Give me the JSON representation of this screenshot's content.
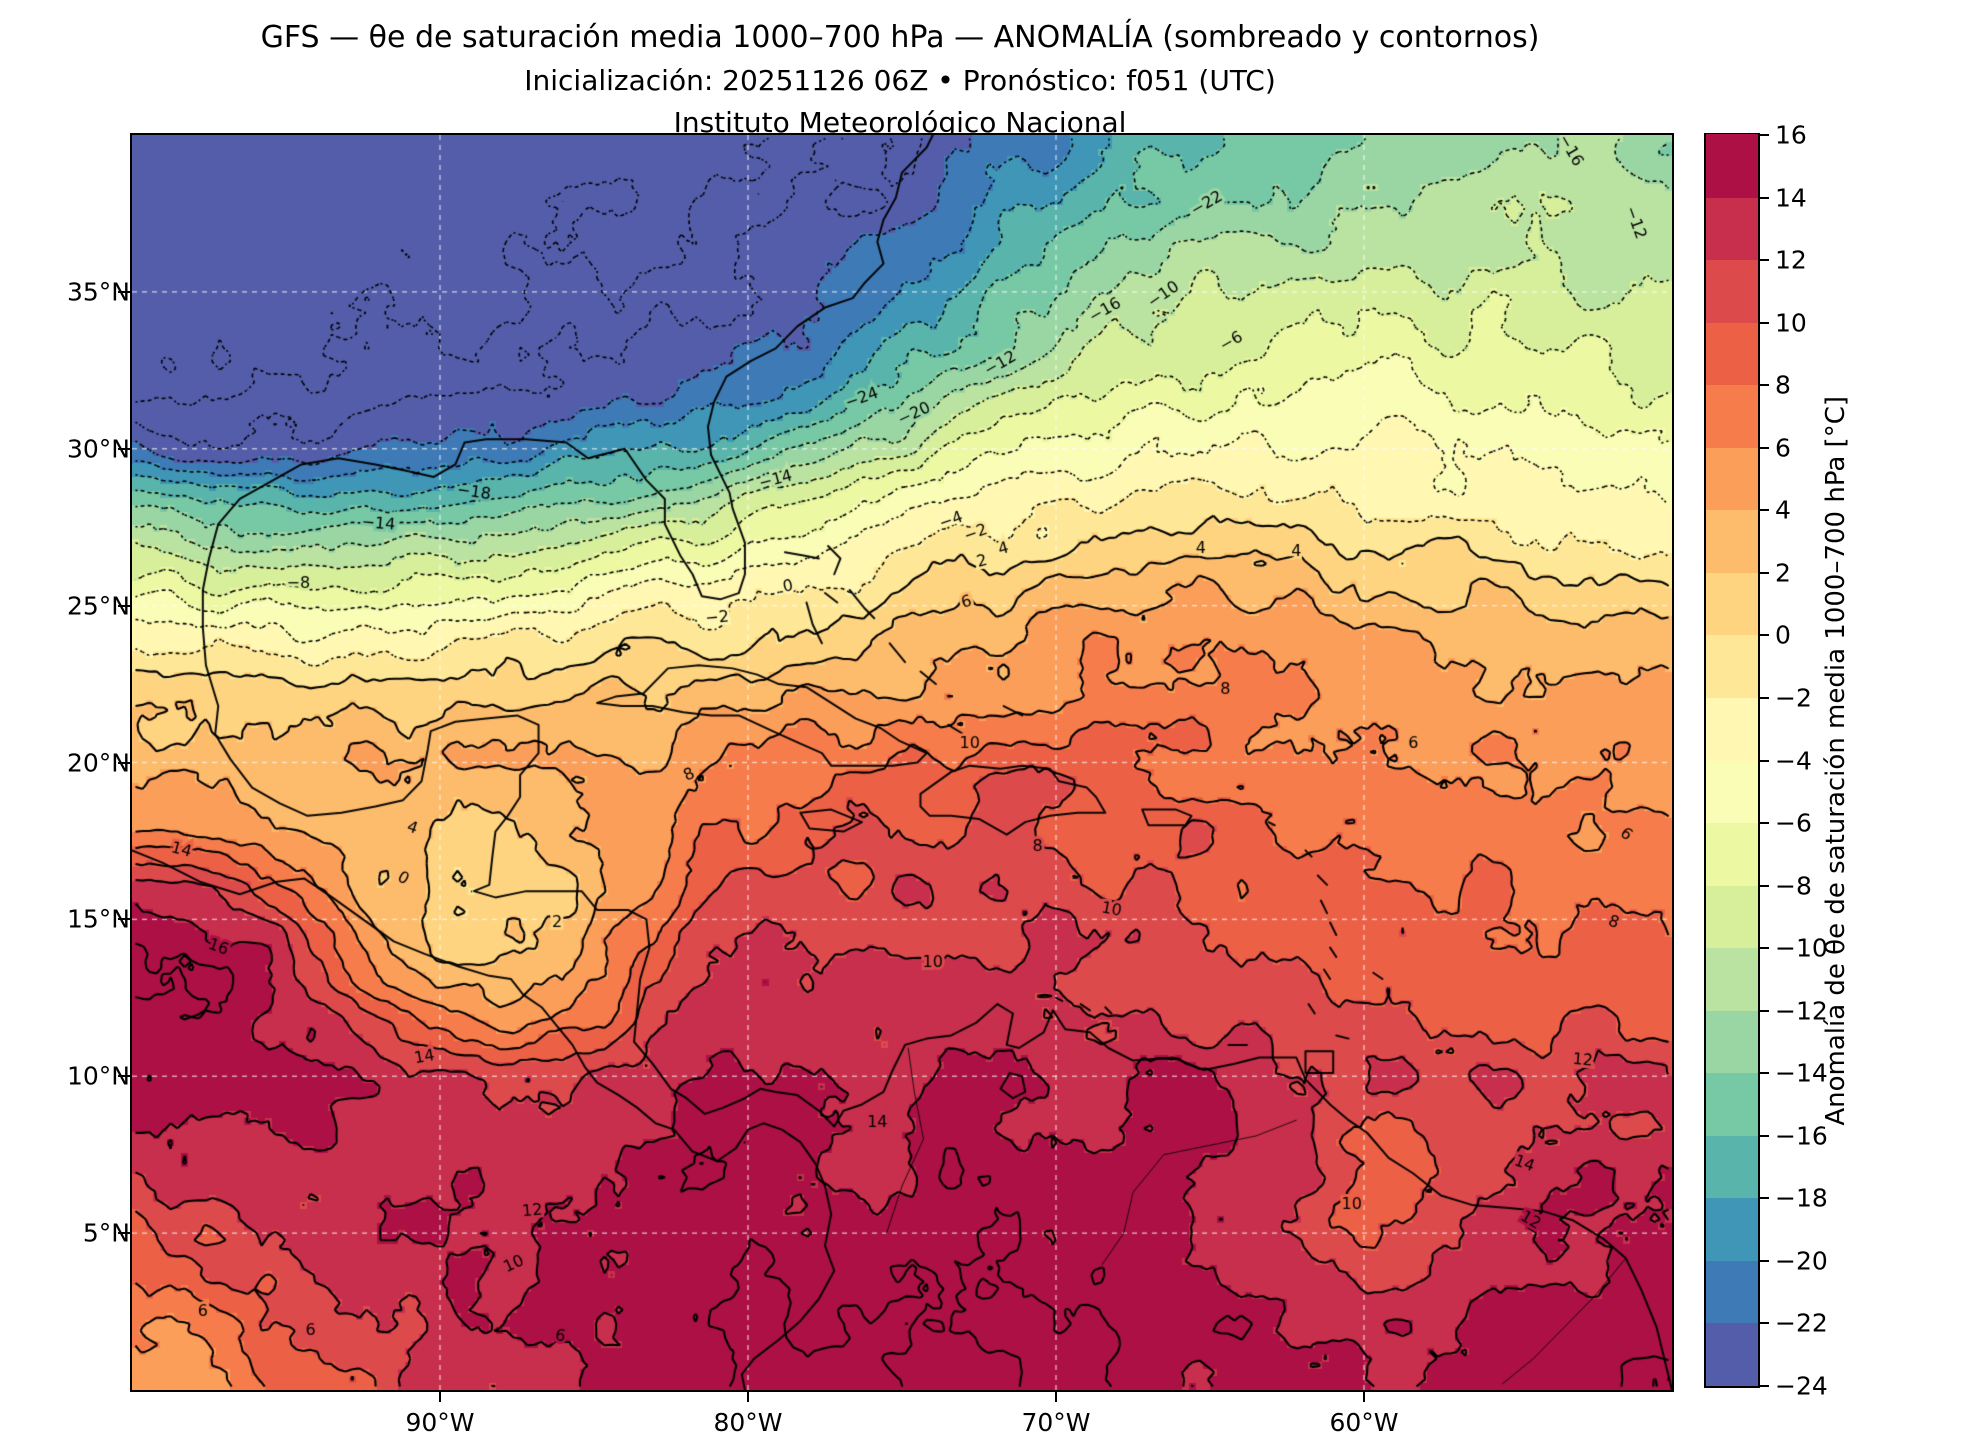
{
  "title": "GFS — θe de saturación media 1000–700 hPa — ANOMALÍA (sombreado y contornos)",
  "subtitle": "Inicialización: 20251126 06Z  •  Pronóstico: f051 (UTC)",
  "institution": "Instituto Meteorológico Nacional",
  "model_info": {
    "model": "GFS",
    "init": "20251126 06Z",
    "forecast": "f051 (UTC)"
  },
  "axes": {
    "x_ticks": [
      {
        "label": "90°W",
        "lon": -90
      },
      {
        "label": "80°W",
        "lon": -80
      },
      {
        "label": "70°W",
        "lon": -70
      },
      {
        "label": "60°W",
        "lon": -60
      }
    ],
    "y_ticks": [
      {
        "label": "35°N",
        "lat": 35
      },
      {
        "label": "30°N",
        "lat": 30
      },
      {
        "label": "25°N",
        "lat": 25
      },
      {
        "label": "20°N",
        "lat": 20
      },
      {
        "label": "15°N",
        "lat": 15
      },
      {
        "label": "10°N",
        "lat": 10
      },
      {
        "label": "5°N",
        "lat": 5
      }
    ]
  },
  "colorbar": {
    "title": "Anomalía de θe de saturación media 1000–700 hPa [°C]",
    "ticks": [
      -24,
      -22,
      -20,
      -18,
      -16,
      -14,
      -12,
      -10,
      -8,
      -6,
      -4,
      -2,
      0,
      2,
      4,
      6,
      8,
      10,
      12,
      14,
      16
    ],
    "colors": [
      "#535da9",
      "#3d7ab6",
      "#3f96b7",
      "#59b4ab",
      "#77c9a5",
      "#9ad6a4",
      "#bae3a1",
      "#d7ef9b",
      "#ecf8a2",
      "#f9fdb5",
      "#fff7b2",
      "#fee898",
      "#fed481",
      "#fdbb6c",
      "#fb9e5a",
      "#f67d4b",
      "#ec6146",
      "#dd4a4c",
      "#c72f4c",
      "#ac1045"
    ]
  },
  "chart_data": {
    "type": "heatmap",
    "subtype": "filled-contour-anomaly-map",
    "variable": "Anomalía de θe de saturación media 1000–700 hPa [°C]",
    "lon_min": -100,
    "lon_max": -50,
    "lat_min": 0,
    "lat_max": 40,
    "grid_step_deg": 2,
    "shading_levels": {
      "min": -24,
      "max": 16,
      "step": 2
    },
    "contour_step": 2,
    "negative_contours_dotted": true,
    "values_north_to_south": [
      [
        -28,
        -28,
        -28,
        -28,
        -28,
        -28,
        -28,
        -27,
        -27,
        -26,
        -26,
        -25,
        -24,
        -23,
        -22,
        -20,
        -18,
        -17,
        -16,
        -15,
        -14,
        -13,
        -13,
        -12,
        -12,
        -13
      ],
      [
        -28,
        -28,
        -28,
        -28,
        -28,
        -28,
        -27,
        -27,
        -26,
        -26,
        -25,
        -24,
        -23,
        -22,
        -20,
        -18,
        -16,
        -15,
        -14,
        -13,
        -12,
        -12,
        -11,
        -11,
        -12,
        -12
      ],
      [
        -28,
        -28,
        -28,
        -28,
        -27,
        -27,
        -27,
        -26,
        -26,
        -25,
        -24,
        -23,
        -22,
        -20,
        -18,
        -16,
        -14,
        -12,
        -11,
        -11,
        -10,
        -10,
        -10,
        -10,
        -11,
        -11
      ],
      [
        -27,
        -27,
        -27,
        -27,
        -26,
        -26,
        -26,
        -25,
        -25,
        -24,
        -23,
        -22,
        -20,
        -18,
        -15,
        -13,
        -11,
        -10,
        -9,
        -9,
        -8,
        -8,
        -8,
        -9,
        -9,
        -10
      ],
      [
        -26,
        -26,
        -26,
        -26,
        -25,
        -25,
        -25,
        -24,
        -23,
        -22,
        -21,
        -19,
        -17,
        -14,
        -12,
        -10,
        -8,
        -7,
        -7,
        -6,
        -6,
        -6,
        -7,
        -7,
        -8,
        -8
      ],
      [
        -22,
        -23,
        -23,
        -23,
        -22,
        -22,
        -21,
        -20,
        -19,
        -18,
        -16,
        -14,
        -11,
        -9,
        -7,
        -6,
        -5,
        -4,
        -4,
        -4,
        -4,
        -4,
        -5,
        -5,
        -6,
        -6
      ],
      [
        -14,
        -15,
        -16,
        -16,
        -16,
        -15,
        -14,
        -13,
        -12,
        -11,
        -9,
        -8,
        -6,
        -4,
        -3,
        -2,
        -1,
        -1,
        -1,
        -1,
        -2,
        -2,
        -2,
        -3,
        -3,
        -4
      ],
      [
        -8,
        -9,
        -9,
        -9,
        -9,
        -8,
        -8,
        -7,
        -6,
        -5,
        -4,
        -3,
        -2,
        0,
        1,
        2,
        2,
        3,
        3,
        2,
        2,
        1,
        1,
        0,
        0,
        -1
      ],
      [
        -2,
        -3,
        -3,
        -3,
        -3,
        -3,
        -2,
        -2,
        -1,
        -1,
        0,
        1,
        2,
        3,
        4,
        5,
        5,
        5,
        5,
        5,
        4,
        4,
        4,
        3,
        3,
        3
      ],
      [
        1,
        1,
        1,
        1,
        1,
        1,
        2,
        2,
        2,
        3,
        3,
        4,
        5,
        5,
        6,
        6,
        7,
        8,
        6,
        6,
        5,
        5,
        5,
        5,
        4,
        4
      ],
      [
        3,
        3,
        3,
        3,
        4,
        4,
        4,
        4,
        4,
        5,
        6,
        7,
        7,
        8,
        9,
        10,
        8,
        7,
        7,
        6,
        6,
        6,
        6,
        5,
        5,
        5
      ],
      [
        6,
        5,
        4,
        3,
        2,
        2,
        2,
        3,
        5,
        7,
        8,
        9,
        10,
        10,
        11,
        10,
        10,
        9,
        9,
        8,
        8,
        7,
        7,
        7,
        6,
        6
      ],
      [
        14,
        13,
        10,
        6,
        3,
        1,
        1,
        2,
        4,
        8,
        10,
        11,
        11,
        12,
        12,
        11,
        10,
        10,
        9,
        9,
        8,
        8,
        8,
        7,
        7,
        7
      ],
      [
        16,
        16,
        14,
        10,
        5,
        2,
        2,
        3,
        6,
        10,
        12,
        12,
        12,
        12,
        12,
        12,
        11,
        11,
        10,
        10,
        9,
        9,
        9,
        8,
        8,
        8
      ],
      [
        16,
        16,
        15,
        13,
        10,
        7,
        5,
        6,
        9,
        12,
        13,
        13,
        13,
        13,
        13,
        12,
        12,
        12,
        11,
        11,
        11,
        10,
        10,
        10,
        10,
        10
      ],
      [
        15,
        15,
        15,
        14,
        13,
        12,
        11,
        12,
        13,
        14,
        14,
        14,
        13,
        14,
        14,
        13,
        13,
        14,
        13,
        12,
        12,
        12,
        12,
        11,
        12,
        12
      ],
      [
        13,
        14,
        14,
        14,
        14,
        14,
        13,
        14,
        14,
        15,
        15,
        14,
        14,
        15,
        15,
        14,
        14,
        15,
        14,
        12,
        10,
        10,
        12,
        13,
        13,
        13
      ],
      [
        11,
        12,
        13,
        13,
        14,
        14,
        14,
        14,
        15,
        15,
        15,
        15,
        14,
        15,
        15,
        15,
        15,
        15,
        14,
        12,
        9,
        10,
        12,
        14,
        14,
        14
      ],
      [
        8,
        9,
        11,
        12,
        13,
        14,
        14,
        15,
        15,
        16,
        16,
        15,
        15,
        15,
        16,
        15,
        15,
        15,
        14,
        13,
        11,
        12,
        13,
        14,
        15,
        15
      ],
      [
        6,
        7,
        9,
        10,
        12,
        13,
        14,
        14,
        15,
        16,
        16,
        16,
        15,
        15,
        16,
        16,
        15,
        15,
        15,
        14,
        13,
        13,
        14,
        15,
        15,
        16
      ],
      [
        5,
        6,
        7,
        9,
        11,
        12,
        13,
        14,
        15,
        16,
        16,
        16,
        16,
        15,
        16,
        16,
        16,
        15,
        15,
        14,
        14,
        14,
        15,
        15,
        16,
        16
      ]
    ],
    "contour_labels": [
      {
        "v": -24,
        "lon": -76.3,
        "lat": 31.6,
        "r": 20
      },
      {
        "v": -20,
        "lon": -74.6,
        "lat": 31.1,
        "r": 25
      },
      {
        "v": -18,
        "lon": -88.9,
        "lat": 28.6,
        "r": -8
      },
      {
        "v": -14,
        "lon": -79.1,
        "lat": 29.0,
        "r": 15
      },
      {
        "v": -14,
        "lon": -92.0,
        "lat": 27.6,
        "r": -5
      },
      {
        "v": -12,
        "lon": -71.8,
        "lat": 32.7,
        "r": 30
      },
      {
        "v": -16,
        "lon": -68.4,
        "lat": 34.4,
        "r": 30
      },
      {
        "v": -10,
        "lon": -66.5,
        "lat": 34.9,
        "r": 35
      },
      {
        "v": -6,
        "lon": -64.3,
        "lat": 33.4,
        "r": 30
      },
      {
        "v": -22,
        "lon": -65.1,
        "lat": 37.8,
        "r": 30
      },
      {
        "v": -12,
        "lon": -51.2,
        "lat": 37.2,
        "r": -70
      },
      {
        "v": -16,
        "lon": -53.3,
        "lat": 39.5,
        "r": -60
      },
      {
        "v": -8,
        "lon": -94.6,
        "lat": 25.7,
        "r": 0
      },
      {
        "v": -4,
        "lon": -73.4,
        "lat": 27.7,
        "r": 20
      },
      {
        "v": -2,
        "lon": -72.6,
        "lat": 27.3,
        "r": 20
      },
      {
        "v": -2,
        "lon": -81.0,
        "lat": 24.6,
        "r": 5
      },
      {
        "v": 0,
        "lon": -78.7,
        "lat": 25.6,
        "r": 10
      },
      {
        "v": 0,
        "lon": -91.2,
        "lat": 16.3,
        "r": -30
      },
      {
        "v": 2,
        "lon": -72.4,
        "lat": 26.4,
        "r": 15
      },
      {
        "v": 2,
        "lon": -86.2,
        "lat": 14.9,
        "r": 0
      },
      {
        "v": 4,
        "lon": -71.7,
        "lat": 26.8,
        "r": 15
      },
      {
        "v": 4,
        "lon": -65.3,
        "lat": 26.8,
        "r": 0
      },
      {
        "v": 4,
        "lon": -62.2,
        "lat": 26.7,
        "r": 0
      },
      {
        "v": 4,
        "lon": -90.9,
        "lat": 17.9,
        "r": -20
      },
      {
        "v": 6,
        "lon": -72.9,
        "lat": 25.1,
        "r": 15
      },
      {
        "v": 6,
        "lon": -58.4,
        "lat": 20.6,
        "r": 0
      },
      {
        "v": 6,
        "lon": -51.5,
        "lat": 17.7,
        "r": -40
      },
      {
        "v": 6,
        "lon": -97.7,
        "lat": 2.5,
        "r": 0
      },
      {
        "v": 6,
        "lon": -94.2,
        "lat": 1.9,
        "r": 0
      },
      {
        "v": 6,
        "lon": -86.1,
        "lat": 1.7,
        "r": -10
      },
      {
        "v": 8,
        "lon": -81.9,
        "lat": 19.6,
        "r": 25
      },
      {
        "v": 8,
        "lon": -70.6,
        "lat": 17.3,
        "r": 0
      },
      {
        "v": 8,
        "lon": -51.9,
        "lat": 14.9,
        "r": -20
      },
      {
        "v": 8,
        "lon": -64.5,
        "lat": 22.3,
        "r": 0
      },
      {
        "v": 10,
        "lon": -72.8,
        "lat": 20.6,
        "r": 0
      },
      {
        "v": 10,
        "lon": -68.2,
        "lat": 15.3,
        "r": -10
      },
      {
        "v": 10,
        "lon": -60.4,
        "lat": 5.9,
        "r": 0
      },
      {
        "v": 10,
        "lon": -87.6,
        "lat": 4.0,
        "r": 25
      },
      {
        "v": 10,
        "lon": -74.0,
        "lat": 13.6,
        "r": 0
      },
      {
        "v": 12,
        "lon": -87.0,
        "lat": 5.7,
        "r": 5
      },
      {
        "v": 12,
        "lon": -52.9,
        "lat": 10.5,
        "r": -5
      },
      {
        "v": 12,
        "lon": -54.6,
        "lat": 5.4,
        "r": -30
      },
      {
        "v": 14,
        "lon": -98.4,
        "lat": 17.2,
        "r": -15
      },
      {
        "v": 14,
        "lon": -90.5,
        "lat": 10.6,
        "r": 10
      },
      {
        "v": 14,
        "lon": -75.8,
        "lat": 8.5,
        "r": 0
      },
      {
        "v": 14,
        "lon": -54.8,
        "lat": 7.2,
        "r": -20
      },
      {
        "v": 16,
        "lon": -97.2,
        "lat": 14.1,
        "r": -20
      }
    ]
  }
}
